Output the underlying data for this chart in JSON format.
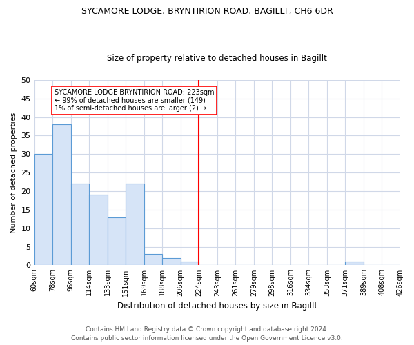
{
  "title1": "SYCAMORE LODGE, BRYNTIRION ROAD, BAGILLT, CH6 6DR",
  "title2": "Size of property relative to detached houses in Bagillt",
  "xlabel": "Distribution of detached houses by size in Bagillt",
  "ylabel": "Number of detached properties",
  "footnote1": "Contains HM Land Registry data © Crown copyright and database right 2024.",
  "footnote2": "Contains public sector information licensed under the Open Government Licence v3.0.",
  "bin_labels": [
    "60sqm",
    "78sqm",
    "96sqm",
    "114sqm",
    "133sqm",
    "151sqm",
    "169sqm",
    "188sqm",
    "206sqm",
    "224sqm",
    "243sqm",
    "261sqm",
    "279sqm",
    "298sqm",
    "316sqm",
    "334sqm",
    "353sqm",
    "371sqm",
    "389sqm",
    "408sqm",
    "426sqm"
  ],
  "counts": [
    30,
    38,
    22,
    19,
    13,
    22,
    3,
    2,
    1,
    0,
    0,
    0,
    0,
    0,
    0,
    0,
    0,
    1,
    0,
    0
  ],
  "bar_color": "#d6e4f7",
  "bar_edge_color": "#5b9bd5",
  "grid_color": "#d0d8e8",
  "vline_bin": 9,
  "vline_color": "red",
  "annotation_text": "SYCAMORE LODGE BRYNTIRION ROAD: 223sqm\n← 99% of detached houses are smaller (149)\n1% of semi-detached houses are larger (2) →",
  "annotation_box_color": "white",
  "annotation_box_edge_color": "red",
  "ylim": [
    0,
    50
  ],
  "yticks": [
    0,
    5,
    10,
    15,
    20,
    25,
    30,
    35,
    40,
    45,
    50
  ],
  "title1_fontsize": 9,
  "title2_fontsize": 8.5,
  "ylabel_fontsize": 8,
  "xlabel_fontsize": 8.5,
  "tick_fontsize": 7,
  "footnote_fontsize": 6.5,
  "annotation_fontsize": 7
}
